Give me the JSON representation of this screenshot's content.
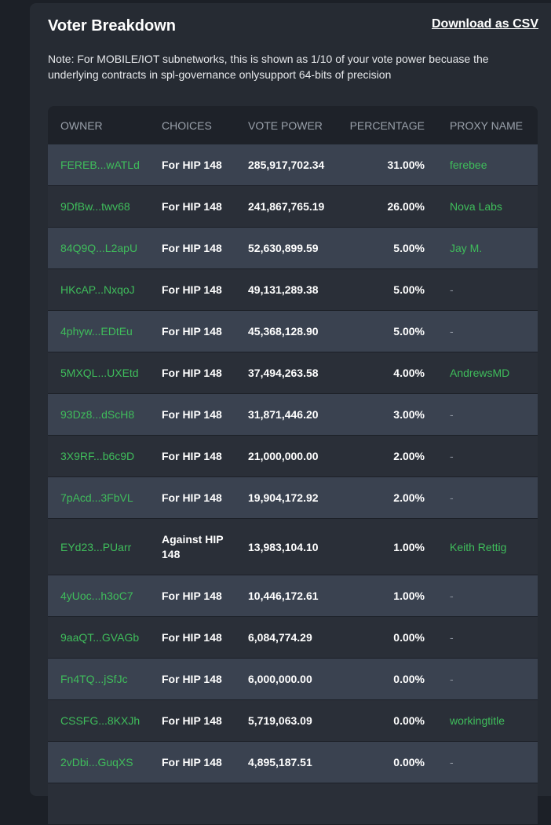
{
  "panel": {
    "title": "Voter Breakdown",
    "download_label": "Download as CSV",
    "note": "Note: For MOBILE/IOT subnetworks, this is shown as 1/10 of your vote power becuase the underlying contracts in spl-governance onlysupport 64-bits of precision"
  },
  "table": {
    "headers": {
      "owner": "OWNER",
      "choices": "CHOICES",
      "vote_power": "VOTE POWER",
      "percentage": "PERCENTAGE",
      "proxy_name": "PROXY NAME"
    },
    "rows": [
      {
        "owner": "FEREB...wATLd",
        "choice": "For HIP 148",
        "vote_power": "285,917,702.34",
        "percentage": "31.00%",
        "proxy": "ferebee"
      },
      {
        "owner": "9DfBw...twv68",
        "choice": "For HIP 148",
        "vote_power": "241,867,765.19",
        "percentage": "26.00%",
        "proxy": "Nova Labs"
      },
      {
        "owner": "84Q9Q...L2apU",
        "choice": "For HIP 148",
        "vote_power": "52,630,899.59",
        "percentage": "5.00%",
        "proxy": "Jay M."
      },
      {
        "owner": "HKcAP...NxqoJ",
        "choice": "For HIP 148",
        "vote_power": "49,131,289.38",
        "percentage": "5.00%",
        "proxy": "-"
      },
      {
        "owner": "4phyw...EDtEu",
        "choice": "For HIP 148",
        "vote_power": "45,368,128.90",
        "percentage": "5.00%",
        "proxy": "-"
      },
      {
        "owner": "5MXQL...UXEtd",
        "choice": "For HIP 148",
        "vote_power": "37,494,263.58",
        "percentage": "4.00%",
        "proxy": "AndrewsMD"
      },
      {
        "owner": "93Dz8...dScH8",
        "choice": "For HIP 148",
        "vote_power": "31,871,446.20",
        "percentage": "3.00%",
        "proxy": "-"
      },
      {
        "owner": "3X9RF...b6c9D",
        "choice": "For HIP 148",
        "vote_power": "21,000,000.00",
        "percentage": "2.00%",
        "proxy": "-"
      },
      {
        "owner": "7pAcd...3FbVL",
        "choice": "For HIP 148",
        "vote_power": "19,904,172.92",
        "percentage": "2.00%",
        "proxy": "-"
      },
      {
        "owner": "EYd23...PUarr",
        "choice": "Against HIP 148",
        "vote_power": "13,983,104.10",
        "percentage": "1.00%",
        "proxy": "Keith Rettig"
      },
      {
        "owner": "4yUoc...h3oC7",
        "choice": "For HIP 148",
        "vote_power": "10,446,172.61",
        "percentage": "1.00%",
        "proxy": "-"
      },
      {
        "owner": "9aaQT...GVAGb",
        "choice": "For HIP 148",
        "vote_power": "6,084,774.29",
        "percentage": "0.00%",
        "proxy": "-"
      },
      {
        "owner": "Fn4TQ...jSfJc",
        "choice": "For HIP 148",
        "vote_power": "6,000,000.00",
        "percentage": "0.00%",
        "proxy": "-"
      },
      {
        "owner": "CSSFG...8KXJh",
        "choice": "For HIP 148",
        "vote_power": "5,719,063.09",
        "percentage": "0.00%",
        "proxy": "workingtitle"
      },
      {
        "owner": "2vDbi...GuqXS",
        "choice": "For HIP 148",
        "vote_power": "4,895,187.51",
        "percentage": "0.00%",
        "proxy": "-"
      },
      {
        "owner": "",
        "choice": "",
        "vote_power": "",
        "percentage": "",
        "proxy": ""
      }
    ]
  },
  "colors": {
    "accent_green": "#3fbd5b",
    "panel_bg": "#262b33",
    "row_even": "#3a4250",
    "row_odd": "#2a2f38"
  }
}
